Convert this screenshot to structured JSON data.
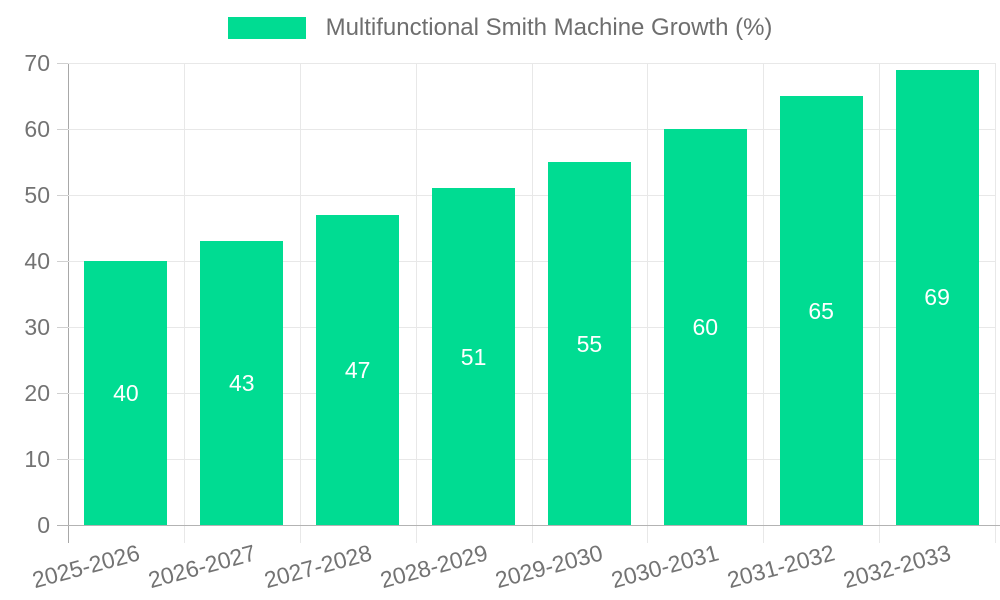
{
  "legend": {
    "label": "Multifunctional Smith Machine Growth (%)",
    "swatch_color": "#00dc92"
  },
  "chart_data": {
    "type": "bar",
    "title": "Multifunctional Smith Machine Growth (%)",
    "categories": [
      "2025-2026",
      "2026-2027",
      "2027-2028",
      "2028-2029",
      "2029-2030",
      "2030-2031",
      "2031-2032",
      "2032-2033"
    ],
    "values": [
      40,
      43,
      47,
      51,
      55,
      60,
      65,
      69
    ],
    "yticks": [
      0,
      10,
      20,
      30,
      40,
      50,
      60,
      70
    ],
    "ylim": [
      0,
      70
    ],
    "xlabel": "",
    "ylabel": "",
    "grid": true,
    "legend_position": "top",
    "data_labels": "inside-center",
    "bar_color": "#00dc92",
    "data_label_color": "#ffffff",
    "axis_text_color": "#737373",
    "grid_color": "#e8e8e8",
    "axis_line_color": "#b3b3b3"
  }
}
